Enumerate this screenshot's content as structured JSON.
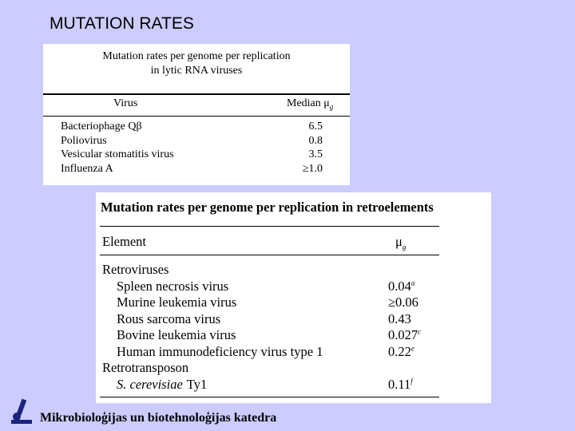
{
  "slide": {
    "title": "MUTATION RATES"
  },
  "table1": {
    "title_lines": [
      "Mutation rates per genome per replication",
      "in lytic RNA viruses"
    ],
    "headers": [
      {
        "text": "Virus"
      },
      {
        "text": "Median μ",
        "sub": "g"
      }
    ],
    "rows": [
      [
        "Bacteriophage Qβ",
        "6.5"
      ],
      [
        "Poliovirus",
        "0.8"
      ],
      [
        "Vesicular stomatitis virus",
        "3.5"
      ],
      [
        "Influenza A",
        "≥1.0"
      ]
    ]
  },
  "table2": {
    "title": "Mutation rates per genome per replication in retroelements",
    "headers": [
      {
        "text": "Element"
      },
      {
        "text": "μ",
        "sub": "g"
      }
    ],
    "groups": [
      {
        "name": "Retroviruses",
        "rows": [
          {
            "name": [
              {
                "text": "Spleen necrosis virus"
              }
            ],
            "value": "0.04",
            "note": "a"
          },
          {
            "name": [
              {
                "text": "Murine leukemia virus"
              }
            ],
            "value": "≥0.06"
          },
          {
            "name": [
              {
                "text": "Rous sarcoma virus"
              }
            ],
            "value": "0.43"
          },
          {
            "name": [
              {
                "text": "Bovine leukemia virus"
              }
            ],
            "value": "0.027",
            "note": "c"
          },
          {
            "name": [
              {
                "text": "Human immunodeficiency virus type 1"
              }
            ],
            "value": "0.22",
            "note": "e"
          }
        ]
      },
      {
        "name": "Retrotransposon",
        "rows": [
          {
            "name": [
              {
                "text": "S. cerevisiae",
                "italic": true
              },
              {
                "text": "Ty1"
              }
            ],
            "value": "0.11",
            "note": "f"
          }
        ]
      }
    ]
  },
  "footer": {
    "text": "Mikrobioloģijas un biotehnoloģijas katedra"
  }
}
